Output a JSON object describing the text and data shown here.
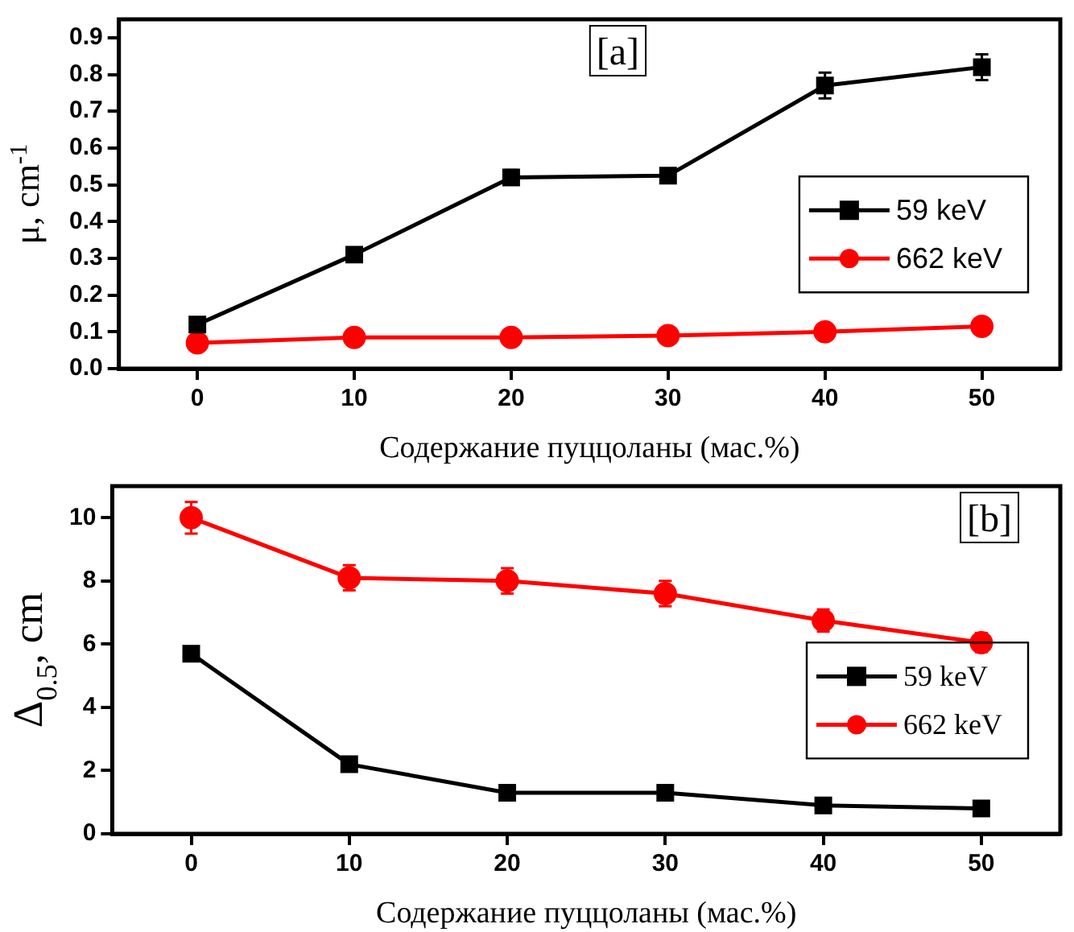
{
  "chart_data": [
    {
      "type": "line",
      "xlabel": "Содержание пуццоланы (мас.%)",
      "ylabel": "μ, cm$^{-1}$",
      "annotations": [
        "[a]"
      ],
      "x": [
        0,
        10,
        20,
        30,
        40,
        50
      ],
      "xlim": [
        -5,
        55
      ],
      "xticks": [
        0,
        10,
        20,
        30,
        40,
        50
      ],
      "ylim": [
        0,
        0.95
      ],
      "yticks": [
        {
          "value": 0,
          "label": "0.0"
        },
        0.1,
        0.2,
        0.3,
        0.4,
        0.5,
        0.6,
        0.7,
        0.8,
        0.9
      ],
      "grid": false,
      "legend": "right",
      "series": [
        {
          "name": "59 keV",
          "color": "#000000",
          "marker": "square",
          "values": [
            0.12,
            0.31,
            0.52,
            0.525,
            0.77,
            0.82
          ],
          "errors": [
            0.01,
            0.01,
            0.02,
            0.01,
            0.035,
            0.035
          ]
        },
        {
          "name": "662 keV",
          "color": "#ff0000",
          "marker": "circle",
          "values": [
            0.07,
            0.085,
            0.085,
            0.09,
            0.1,
            0.115
          ]
        }
      ]
    },
    {
      "type": "line",
      "xlabel": "Содержание пуццоланы (мас.%)",
      "ylabel": "Δ$_{0.5}$, cm",
      "annotations": [
        "[b]"
      ],
      "x": [
        0,
        10,
        20,
        30,
        40,
        50
      ],
      "xlim": [
        -5,
        55
      ],
      "xticks": [
        0,
        10,
        20,
        30,
        40,
        50
      ],
      "ylim": [
        0,
        11
      ],
      "yticks": [
        0,
        2,
        4,
        6,
        8,
        10
      ],
      "grid": false,
      "legend": "right",
      "series": [
        {
          "name": "59 keV",
          "color": "#000000",
          "marker": "square",
          "values": [
            5.7,
            2.2,
            1.3,
            1.3,
            0.9,
            0.8
          ]
        },
        {
          "name": "662 keV",
          "color": "#ff0000",
          "marker": "circle",
          "values": [
            10.0,
            8.1,
            8.0,
            7.6,
            6.75,
            6.05
          ],
          "errors": [
            0.5,
            0.4,
            0.4,
            0.4,
            0.35,
            0.3
          ]
        }
      ]
    }
  ]
}
